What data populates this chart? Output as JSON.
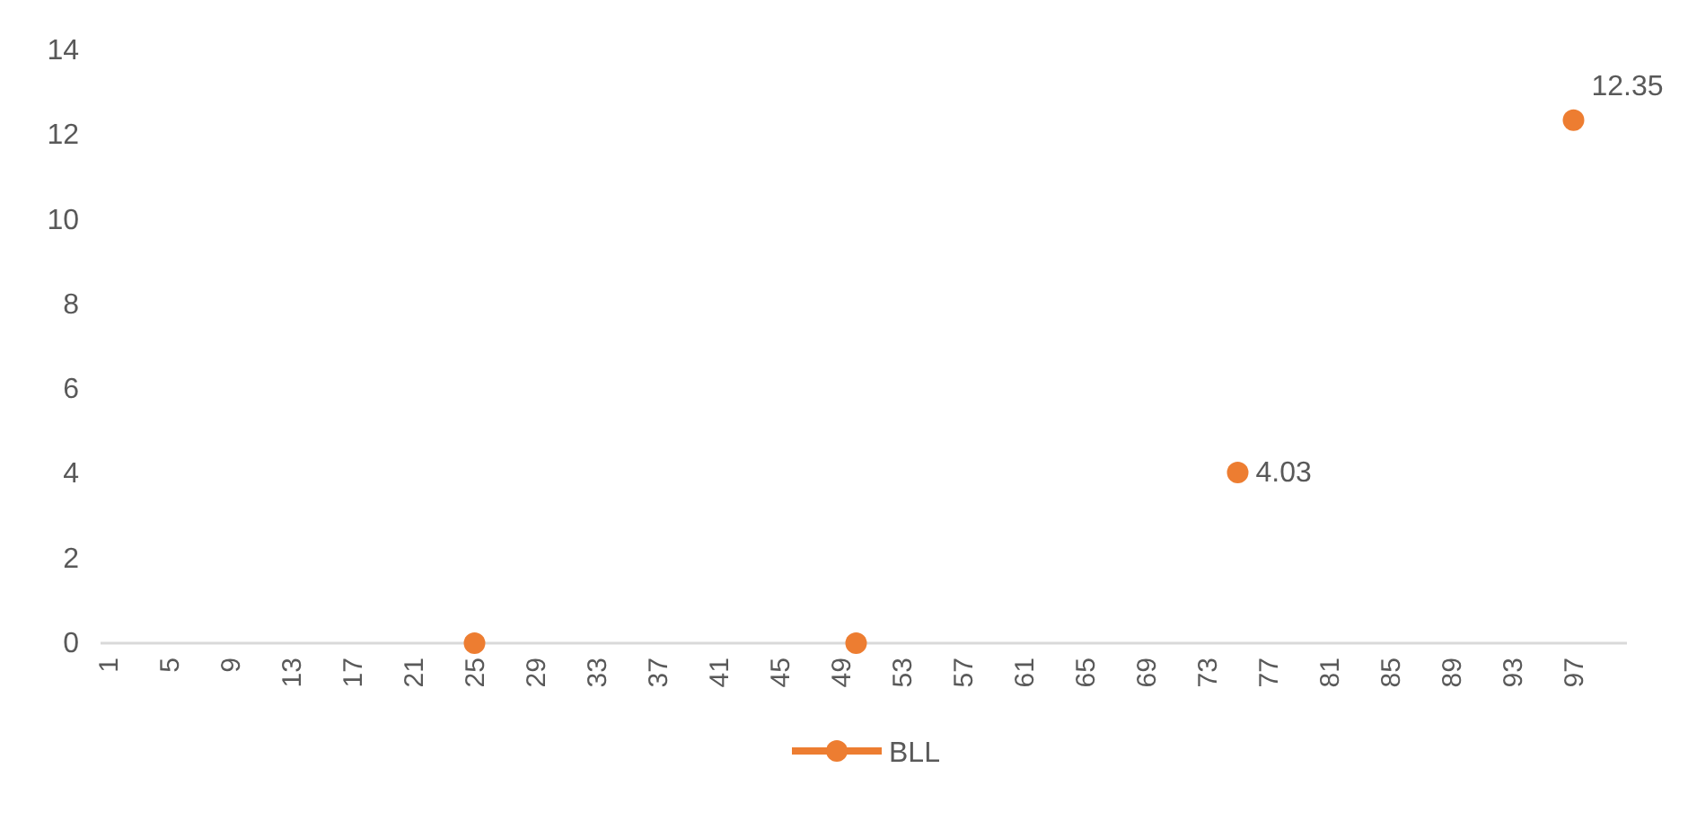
{
  "chart_data": {
    "type": "scatter",
    "categories": [
      "1",
      null,
      null,
      null,
      "5",
      null,
      null,
      null,
      "9",
      null,
      null,
      null,
      "13",
      null,
      null,
      null,
      "17",
      null,
      null,
      null,
      "21",
      null,
      null,
      null,
      "25",
      null,
      null,
      null,
      "29",
      null,
      null,
      null,
      "33",
      null,
      null,
      null,
      "37",
      null,
      null,
      null,
      "41",
      null,
      null,
      null,
      "45",
      null,
      null,
      null,
      "49",
      null,
      null,
      null,
      "53",
      null,
      null,
      null,
      "57",
      null,
      null,
      null,
      "61",
      null,
      null,
      null,
      "65",
      null,
      null,
      null,
      "69",
      null,
      null,
      null,
      "73",
      null,
      null,
      null,
      "77",
      null,
      null,
      null,
      "81",
      null,
      null,
      null,
      "85",
      null,
      null,
      null,
      "89",
      null,
      null,
      null,
      "93",
      null,
      null,
      null,
      "97",
      null,
      null,
      null
    ],
    "series": [
      {
        "name": "BLL",
        "color": "#ed7d31",
        "values": [
          null,
          null,
          null,
          null,
          null,
          null,
          null,
          null,
          null,
          null,
          null,
          null,
          null,
          null,
          null,
          null,
          null,
          null,
          null,
          null,
          null,
          null,
          null,
          null,
          0,
          null,
          null,
          null,
          null,
          null,
          null,
          null,
          null,
          null,
          null,
          null,
          null,
          null,
          null,
          null,
          null,
          null,
          null,
          null,
          null,
          null,
          null,
          null,
          null,
          0,
          null,
          null,
          null,
          null,
          null,
          null,
          null,
          null,
          null,
          null,
          null,
          null,
          null,
          null,
          null,
          null,
          null,
          null,
          null,
          null,
          null,
          null,
          null,
          null,
          4.03,
          null,
          null,
          null,
          null,
          null,
          null,
          null,
          null,
          null,
          null,
          null,
          null,
          null,
          null,
          null,
          null,
          null,
          null,
          null,
          null,
          null,
          12.35,
          null,
          null,
          null
        ],
        "value_labels": [
          null,
          null,
          null,
          null,
          null,
          null,
          null,
          null,
          null,
          null,
          null,
          null,
          null,
          null,
          null,
          null,
          null,
          null,
          null,
          null,
          null,
          null,
          null,
          null,
          null,
          null,
          null,
          null,
          null,
          null,
          null,
          null,
          null,
          null,
          null,
          null,
          null,
          null,
          null,
          null,
          null,
          null,
          null,
          null,
          null,
          null,
          null,
          null,
          null,
          null,
          null,
          null,
          null,
          null,
          null,
          null,
          null,
          null,
          null,
          null,
          null,
          null,
          null,
          null,
          null,
          null,
          null,
          null,
          null,
          null,
          null,
          null,
          null,
          null,
          "4.03",
          null,
          null,
          null,
          null,
          null,
          null,
          null,
          null,
          null,
          null,
          null,
          null,
          null,
          null,
          null,
          null,
          null,
          null,
          null,
          null,
          null,
          "12.35",
          null,
          null,
          null
        ]
      }
    ],
    "ylim": [
      0,
      14
    ],
    "yticks": [
      0,
      2,
      4,
      6,
      8,
      10,
      12,
      14
    ],
    "grid": false,
    "legend": "bottom",
    "marker": "circle",
    "line_style": "solid"
  }
}
